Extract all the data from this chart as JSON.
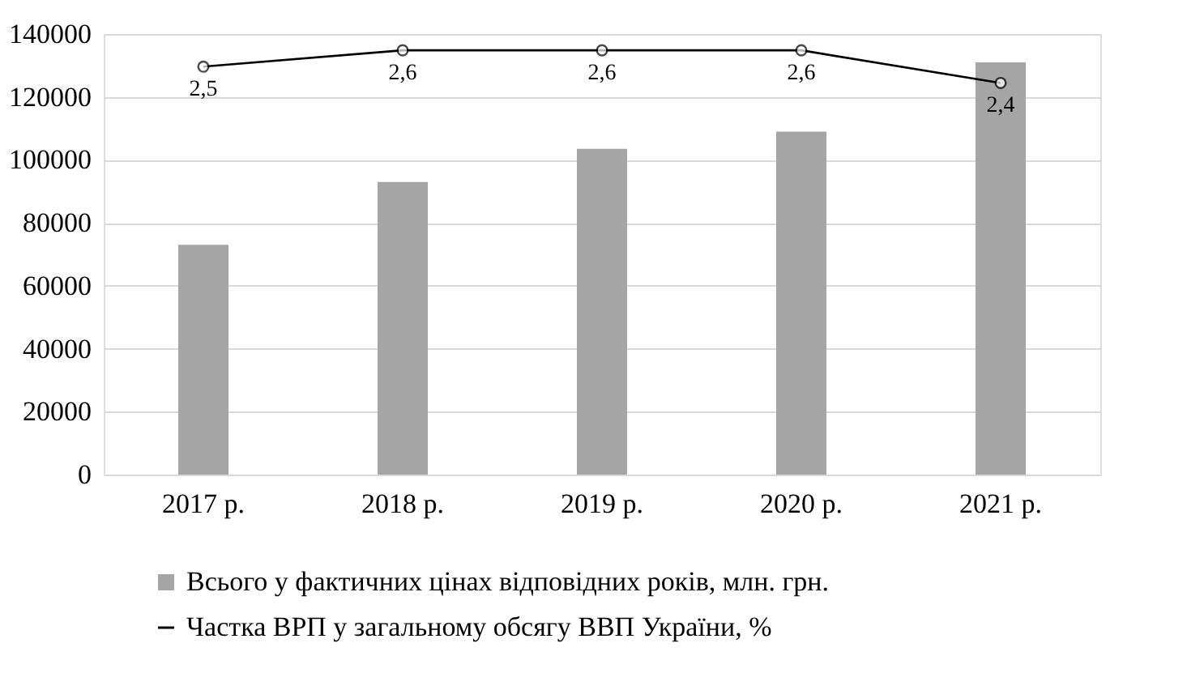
{
  "chart_data": {
    "type": "bar",
    "categories": [
      "2017 р.",
      "2018 р.",
      "2019 р.",
      "2020 р.",
      "2021 р."
    ],
    "series": [
      {
        "name": "Всього у фактичних цінах відповідних років, млн. грн.",
        "color": "#a5a5a5",
        "values": [
          73000,
          93000,
          103500,
          109000,
          131000
        ]
      },
      {
        "name": "Частка ВРП у загальному обсягу ВВП України, %",
        "type": "line",
        "axis": "y2",
        "color": "#000000",
        "marker": "circle",
        "values": [
          2.5,
          2.6,
          2.6,
          2.6,
          2.4
        ],
        "value_labels": [
          "2,5",
          "2,6",
          "2,6",
          "2,6",
          "2,4"
        ]
      }
    ],
    "ylim": [
      0,
      140000
    ],
    "yticks": [
      0,
      20000,
      40000,
      60000,
      80000,
      100000,
      120000,
      140000
    ],
    "y2lim": [
      0,
      2.7
    ],
    "tick_labels": "y",
    "grid": "y",
    "legend": "bottom"
  }
}
